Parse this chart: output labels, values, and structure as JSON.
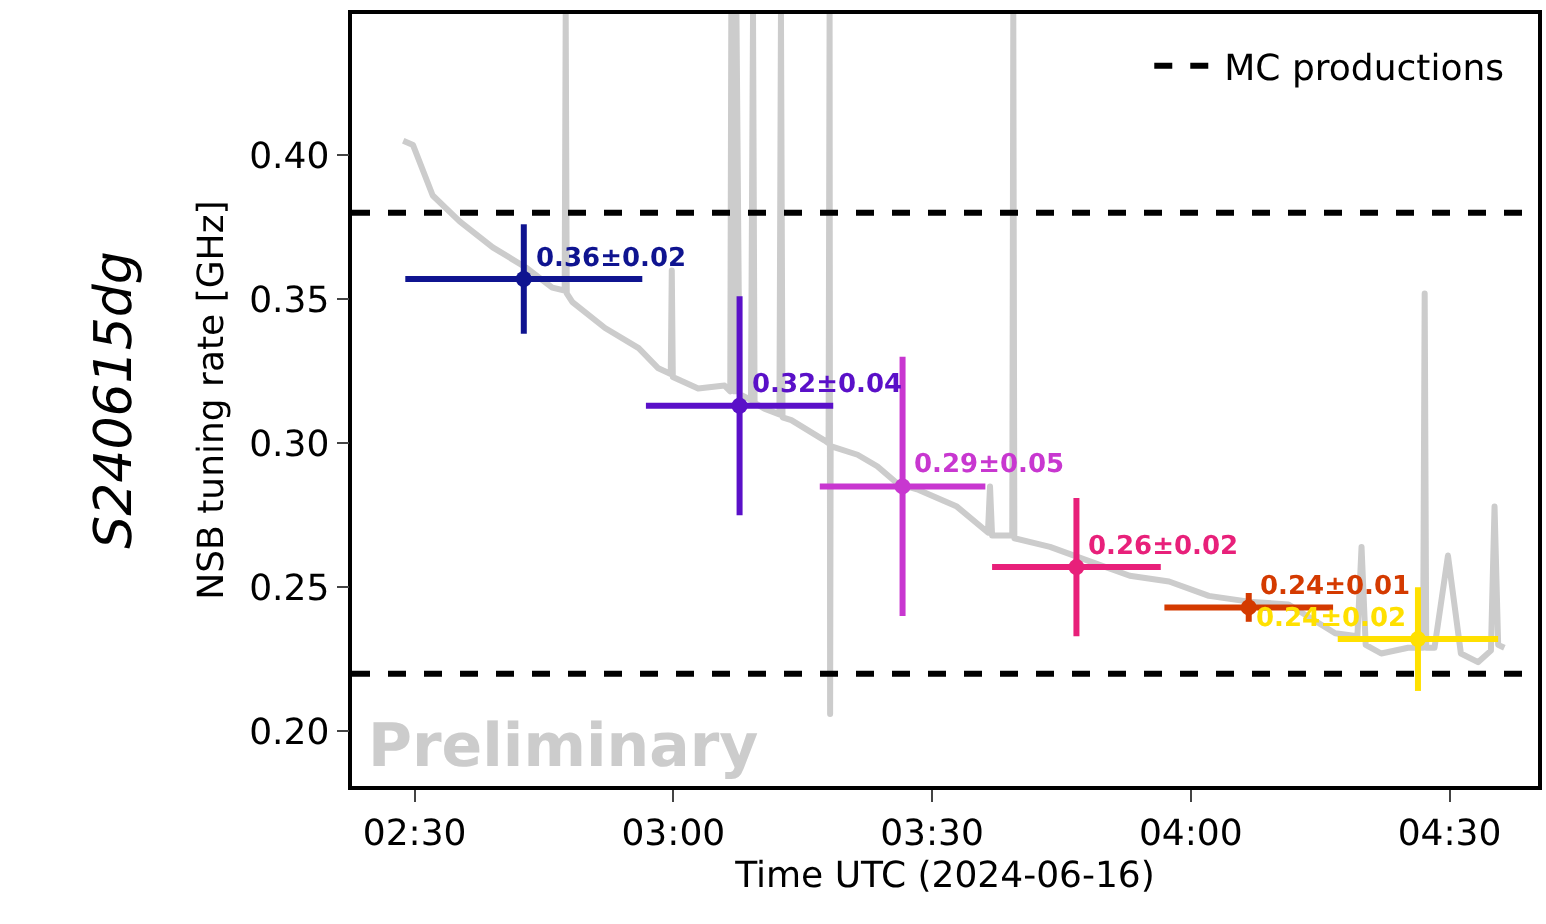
{
  "chart_data": {
    "type": "scatter",
    "xlabel": "Time UTC (2024-06-16)",
    "ylabel": "NSB tuning rate [GHz]",
    "xlim": [
      2.379,
      4.671
    ],
    "ylim": [
      0.181,
      0.449
    ],
    "xticks": [
      {
        "value": 2.5,
        "label": "02:30"
      },
      {
        "value": 3.0,
        "label": "03:00"
      },
      {
        "value": 3.5,
        "label": "03:30"
      },
      {
        "value": 4.0,
        "label": "04:00"
      },
      {
        "value": 4.5,
        "label": "04:30"
      }
    ],
    "yticks": [
      {
        "value": 0.2,
        "label": "0.20"
      },
      {
        "value": 0.25,
        "label": "0.25"
      },
      {
        "value": 0.3,
        "label": "0.30"
      },
      {
        "value": 0.35,
        "label": "0.35"
      },
      {
        "value": 0.4,
        "label": "0.40"
      }
    ],
    "legend": "top right",
    "series": [
      {
        "type": "line",
        "color": "#cccccc",
        "x": [
          2.478,
          2.497,
          2.535,
          2.587,
          2.651,
          2.715,
          2.766,
          2.79,
          2.792,
          2.794,
          2.805,
          2.868,
          2.933,
          2.971,
          2.995,
          2.997,
          2.999,
          3.048,
          3.099,
          3.11,
          3.112,
          3.118,
          3.122,
          3.128,
          3.15,
          3.154,
          3.157,
          3.176,
          3.205,
          3.208,
          3.211,
          3.228,
          3.292,
          3.3,
          3.302,
          3.303,
          3.304,
          3.356,
          3.394,
          3.433,
          3.471,
          3.548,
          3.608,
          3.612,
          3.616,
          3.655,
          3.657,
          3.659,
          3.728,
          3.805,
          3.882,
          3.958,
          4.035,
          4.112,
          4.189,
          4.279,
          4.322,
          4.33,
          4.338,
          4.368,
          4.42,
          4.449,
          4.452,
          4.455,
          4.471,
          4.497,
          4.522,
          4.555,
          4.58,
          4.587,
          4.594,
          4.606
        ],
        "values": [
          0.405,
          0.4035,
          0.386,
          0.377,
          0.368,
          0.361,
          0.354,
          0.353,
          0.449,
          0.352,
          0.349,
          0.34,
          0.333,
          0.326,
          0.324,
          0.36,
          0.323,
          0.319,
          0.32,
          0.318,
          0.449,
          0.318,
          0.449,
          0.317,
          0.315,
          0.449,
          0.314,
          0.312,
          0.31,
          0.449,
          0.309,
          0.308,
          0.301,
          0.3,
          0.449,
          0.206,
          0.299,
          0.296,
          0.292,
          0.286,
          0.284,
          0.278,
          0.269,
          0.285,
          0.268,
          0.268,
          0.449,
          0.267,
          0.264,
          0.259,
          0.254,
          0.252,
          0.247,
          0.245,
          0.244,
          0.234,
          0.233,
          0.264,
          0.23,
          0.227,
          0.229,
          0.229,
          0.352,
          0.229,
          0.229,
          0.261,
          0.227,
          0.224,
          0.228,
          0.278,
          0.23,
          0.229
        ]
      },
      {
        "color": "#0f1490",
        "x": [
          2.711
        ],
        "marker": "circle",
        "values": [
          0.357
        ],
        "errors": [
          0.019
        ],
        "xerrors": [
          0.229
        ],
        "value_labels": [
          "0.36±0.02"
        ]
      },
      {
        "color": "#5a10c8",
        "x": [
          3.128
        ],
        "marker": "circle",
        "values": [
          0.313
        ],
        "errors": [
          0.038
        ],
        "xerrors": [
          0.181
        ],
        "value_labels": [
          "0.32±0.04"
        ]
      },
      {
        "color": "#c837d0",
        "x": [
          3.443
        ],
        "marker": "circle",
        "values": [
          0.285
        ],
        "errors": [
          0.045
        ],
        "xerrors": [
          0.16
        ],
        "value_labels": [
          "0.29±0.05"
        ]
      },
      {
        "color": "#e8207a",
        "x": [
          3.779
        ],
        "marker": "circle",
        "values": [
          0.257
        ],
        "errors": [
          0.024
        ],
        "xerrors": [
          0.163
        ],
        "value_labels": [
          "0.26±0.02"
        ]
      },
      {
        "color": "#d43a00",
        "x": [
          4.112
        ],
        "marker": "circle",
        "values": [
          0.243
        ],
        "errors": [
          0.005
        ],
        "xerrors": [
          0.163
        ],
        "value_labels": [
          "0.24±0.01"
        ]
      },
      {
        "color": "#ffe000",
        "x": [
          4.439
        ],
        "marker": "circle",
        "values": [
          0.232
        ],
        "errors": [
          0.018
        ],
        "xerrors": [
          0.155
        ],
        "value_labels": [
          "0.24±0.02"
        ]
      }
    ],
    "ref_lines": [
      {
        "axis": "y",
        "value": 0.38,
        "label": "MC productions",
        "color": "#000000",
        "line_style": "dashed"
      },
      {
        "axis": "y",
        "value": 0.22,
        "color": "#000000",
        "line_style": "dashed"
      }
    ],
    "annotations": [
      "Preliminary",
      "S240615dg"
    ]
  }
}
